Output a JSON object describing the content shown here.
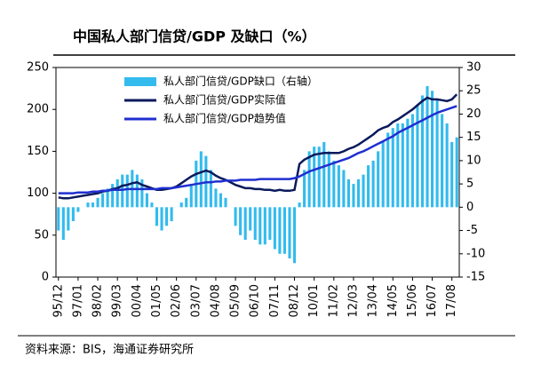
{
  "chart_data": {
    "type": "bar-line",
    "title": "中国私人部门信贷/GDP 及缺口（%）",
    "source": "资料来源：BIS，海通证券研究所",
    "categories": [
      "95/12",
      null,
      null,
      null,
      "97/01",
      null,
      null,
      null,
      "98/02",
      null,
      null,
      null,
      "99/03",
      null,
      null,
      null,
      "00/04",
      null,
      null,
      null,
      "01/05",
      null,
      null,
      null,
      "02/06",
      null,
      null,
      null,
      "03/07",
      null,
      null,
      null,
      "04/08",
      null,
      null,
      null,
      "05/09",
      null,
      null,
      null,
      "06/10",
      null,
      null,
      null,
      "07/11",
      null,
      null,
      null,
      "08/12",
      null,
      null,
      null,
      "10/01",
      null,
      null,
      null,
      "11/02",
      null,
      null,
      null,
      "12/03",
      null,
      null,
      null,
      "13/04",
      null,
      null,
      null,
      "14/05",
      null,
      null,
      null,
      "15/06",
      null,
      null,
      null,
      "16/07",
      null,
      null,
      null,
      "17/08",
      null
    ],
    "ylim": [
      0,
      250
    ],
    "yticks": [
      0,
      50,
      100,
      150,
      200,
      250
    ],
    "y2lim": [
      -15,
      30
    ],
    "y2ticks": [
      -15,
      -10,
      -5,
      0,
      5,
      10,
      15,
      20,
      25,
      30
    ],
    "legend": "upper left",
    "series": [
      {
        "name": "私人部门信贷/GDP缺口（右轴）",
        "type": "bar",
        "axis": "y2",
        "color": "#33bbee",
        "values": [
          -5,
          -7,
          -5,
          -3,
          -1,
          0,
          1,
          1,
          2,
          3,
          4,
          5,
          6,
          7,
          7,
          8,
          7,
          6,
          3,
          1,
          -4,
          -5,
          -4,
          -3,
          0,
          1,
          2,
          5,
          10,
          12,
          11,
          8,
          4,
          3,
          2,
          0,
          -4,
          -6,
          -7,
          -5,
          -7,
          -8,
          -8,
          -7,
          -9,
          -10,
          -10,
          -11,
          -12,
          1,
          8,
          12,
          13,
          13,
          14,
          12,
          10,
          9,
          8,
          6,
          5,
          6,
          7,
          9,
          10,
          12,
          14,
          16,
          17,
          18,
          18,
          19,
          20,
          22,
          24,
          26,
          25,
          23,
          20,
          18,
          14,
          15
        ]
      },
      {
        "name": "私人部门信贷/GDP实际值",
        "type": "line",
        "color": "#0a1a5c",
        "values": [
          95,
          94,
          94,
          95,
          96,
          97,
          98,
          99,
          100,
          102,
          103,
          105,
          106,
          109,
          110,
          112,
          113,
          110,
          108,
          106,
          104,
          104,
          105,
          106,
          108,
          112,
          116,
          120,
          123,
          125,
          127,
          125,
          121,
          118,
          116,
          113,
          110,
          108,
          106,
          106,
          105,
          105,
          104,
          104,
          103,
          104,
          103,
          103,
          104,
          135,
          140,
          143,
          146,
          147,
          148,
          148,
          148,
          148,
          150,
          153,
          155,
          158,
          162,
          166,
          170,
          175,
          178,
          180,
          185,
          188,
          192,
          196,
          200,
          205,
          210,
          214,
          212,
          212,
          211,
          210,
          212,
          218
        ]
      },
      {
        "name": "私人部门信贷/GDP趋势值",
        "type": "line",
        "color": "#1f2fd0",
        "values": [
          100,
          100,
          100,
          100,
          101,
          101,
          101,
          102,
          102,
          103,
          103,
          104,
          104,
          104,
          105,
          105,
          105,
          105,
          105,
          105,
          105,
          106,
          106,
          106,
          107,
          108,
          109,
          110,
          111,
          112,
          113,
          113,
          114,
          114,
          115,
          115,
          115,
          116,
          116,
          116,
          116,
          117,
          117,
          117,
          117,
          117,
          117,
          117,
          118,
          120,
          123,
          126,
          128,
          130,
          132,
          134,
          136,
          138,
          140,
          142,
          145,
          148,
          150,
          153,
          156,
          159,
          162,
          165,
          168,
          172,
          175,
          178,
          181,
          184,
          187,
          190,
          193,
          196,
          198,
          200,
          202,
          204
        ]
      }
    ]
  }
}
